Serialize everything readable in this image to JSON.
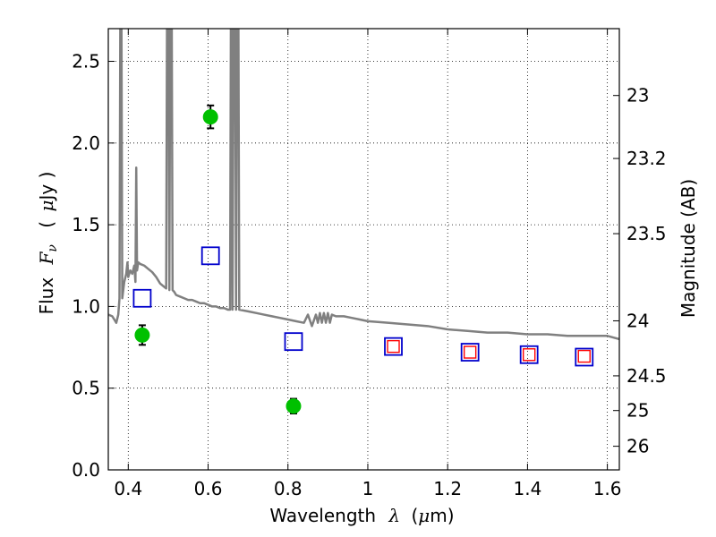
{
  "chart_data": {
    "type": "scatter",
    "title": "",
    "xlabel": {
      "main": "Wavelength",
      "symbol": "λ",
      "unit_open": "(",
      "unit_mu": "μ",
      "unit_rest": "m)"
    },
    "ylabel": {
      "main": "Flux",
      "symbol": "F",
      "sub": "ν",
      "unit_open": "(",
      "unit_mu": "μ",
      "unit_rest": "Jy )"
    },
    "y2label": "Magnitude (AB)",
    "xlim": [
      0.35,
      1.63
    ],
    "ylim": [
      0.0,
      2.7
    ],
    "grid": true,
    "grid_style": "dotted",
    "x_ticks": [
      {
        "v": 0.4,
        "label": "0.4"
      },
      {
        "v": 0.6,
        "label": "0.6"
      },
      {
        "v": 0.8,
        "label": "0.8"
      },
      {
        "v": 1.0,
        "label": "1"
      },
      {
        "v": 1.2,
        "label": "1.2"
      },
      {
        "v": 1.4,
        "label": "1.4"
      },
      {
        "v": 1.6,
        "label": "1.6"
      }
    ],
    "y_ticks": [
      {
        "v": 0.0,
        "label": "0.0"
      },
      {
        "v": 0.5,
        "label": "0.5"
      },
      {
        "v": 1.0,
        "label": "1.0"
      },
      {
        "v": 1.5,
        "label": "1.5"
      },
      {
        "v": 2.0,
        "label": "2.0"
      },
      {
        "v": 2.5,
        "label": "2.5"
      }
    ],
    "y2_ticks": [
      {
        "mag": 23.0,
        "label": "23"
      },
      {
        "mag": 23.2,
        "label": "23.2"
      },
      {
        "mag": 23.5,
        "label": "23.5"
      },
      {
        "mag": 24.0,
        "label": "24"
      },
      {
        "mag": 24.5,
        "label": "24.5"
      },
      {
        "mag": 25.0,
        "label": "25"
      },
      {
        "mag": 26.0,
        "label": "26"
      }
    ],
    "series": [
      {
        "kind": "line",
        "color": "#808080",
        "points": [
          [
            0.35,
            0.95
          ],
          [
            0.36,
            0.94
          ],
          [
            0.37,
            0.9
          ],
          [
            0.375,
            0.95
          ],
          [
            0.378,
            1.05
          ],
          [
            0.38,
            2.7
          ],
          [
            0.383,
            2.7
          ],
          [
            0.385,
            1.05
          ],
          [
            0.39,
            1.15
          ],
          [
            0.395,
            1.2
          ],
          [
            0.398,
            1.27
          ],
          [
            0.4,
            1.18
          ],
          [
            0.405,
            1.22
          ],
          [
            0.41,
            1.2
          ],
          [
            0.415,
            1.25
          ],
          [
            0.418,
            1.15
          ],
          [
            0.42,
            1.85
          ],
          [
            0.422,
            1.22
          ],
          [
            0.425,
            1.27
          ],
          [
            0.43,
            1.26
          ],
          [
            0.44,
            1.25
          ],
          [
            0.45,
            1.23
          ],
          [
            0.46,
            1.21
          ],
          [
            0.47,
            1.18
          ],
          [
            0.48,
            1.14
          ],
          [
            0.49,
            1.12
          ],
          [
            0.495,
            1.11
          ],
          [
            0.497,
            2.7
          ],
          [
            0.501,
            2.7
          ],
          [
            0.503,
            1.1
          ],
          [
            0.505,
            2.7
          ],
          [
            0.509,
            2.7
          ],
          [
            0.511,
            1.1
          ],
          [
            0.515,
            1.09
          ],
          [
            0.52,
            1.07
          ],
          [
            0.53,
            1.06
          ],
          [
            0.54,
            1.05
          ],
          [
            0.55,
            1.04
          ],
          [
            0.56,
            1.04
          ],
          [
            0.57,
            1.03
          ],
          [
            0.58,
            1.02
          ],
          [
            0.59,
            1.02
          ],
          [
            0.6,
            1.01
          ],
          [
            0.61,
            1.0
          ],
          [
            0.62,
            1.0
          ],
          [
            0.63,
            0.99
          ],
          [
            0.64,
            0.99
          ],
          [
            0.65,
            0.98
          ],
          [
            0.655,
            0.98
          ],
          [
            0.657,
            2.7
          ],
          [
            0.659,
            2.7
          ],
          [
            0.661,
            0.98
          ],
          [
            0.664,
            2.7
          ],
          [
            0.668,
            2.7
          ],
          [
            0.67,
            0.98
          ],
          [
            0.672,
            2.7
          ],
          [
            0.676,
            2.7
          ],
          [
            0.678,
            0.98
          ],
          [
            0.7,
            0.97
          ],
          [
            0.72,
            0.96
          ],
          [
            0.74,
            0.95
          ],
          [
            0.76,
            0.94
          ],
          [
            0.78,
            0.93
          ],
          [
            0.8,
            0.92
          ],
          [
            0.82,
            0.91
          ],
          [
            0.84,
            0.9
          ],
          [
            0.85,
            0.95
          ],
          [
            0.86,
            0.88
          ],
          [
            0.87,
            0.95
          ],
          [
            0.875,
            0.9
          ],
          [
            0.88,
            0.96
          ],
          [
            0.885,
            0.9
          ],
          [
            0.89,
            0.96
          ],
          [
            0.895,
            0.9
          ],
          [
            0.9,
            0.96
          ],
          [
            0.905,
            0.9
          ],
          [
            0.91,
            0.95
          ],
          [
            0.92,
            0.94
          ],
          [
            0.94,
            0.94
          ],
          [
            0.96,
            0.93
          ],
          [
            0.98,
            0.92
          ],
          [
            1.0,
            0.91
          ],
          [
            1.05,
            0.9
          ],
          [
            1.1,
            0.89
          ],
          [
            1.15,
            0.88
          ],
          [
            1.2,
            0.86
          ],
          [
            1.25,
            0.85
          ],
          [
            1.3,
            0.84
          ],
          [
            1.35,
            0.84
          ],
          [
            1.4,
            0.83
          ],
          [
            1.45,
            0.83
          ],
          [
            1.5,
            0.82
          ],
          [
            1.55,
            0.82
          ],
          [
            1.6,
            0.82
          ],
          [
            1.63,
            0.8
          ]
        ]
      },
      {
        "kind": "errorbar",
        "marker": "circle",
        "color": "#00c000",
        "points": [
          {
            "x": 0.435,
            "y": 0.825,
            "err": 0.06
          },
          {
            "x": 0.606,
            "y": 2.16,
            "err": 0.07
          },
          {
            "x": 0.814,
            "y": 0.39,
            "err": 0.045
          }
        ]
      },
      {
        "kind": "scatter",
        "marker": "square-open",
        "color": "#0000cc",
        "size": "large",
        "points": [
          {
            "x": 0.435,
            "y": 1.05
          },
          {
            "x": 0.606,
            "y": 1.31
          },
          {
            "x": 0.814,
            "y": 0.785
          },
          {
            "x": 1.064,
            "y": 0.755
          },
          {
            "x": 1.256,
            "y": 0.72
          },
          {
            "x": 1.404,
            "y": 0.705
          },
          {
            "x": 1.542,
            "y": 0.69
          }
        ]
      },
      {
        "kind": "scatter",
        "marker": "square-open",
        "color": "#ff0000",
        "size": "small",
        "points": [
          {
            "x": 1.064,
            "y": 0.755
          },
          {
            "x": 1.256,
            "y": 0.72
          },
          {
            "x": 1.404,
            "y": 0.705
          },
          {
            "x": 1.542,
            "y": 0.695
          }
        ]
      }
    ]
  }
}
